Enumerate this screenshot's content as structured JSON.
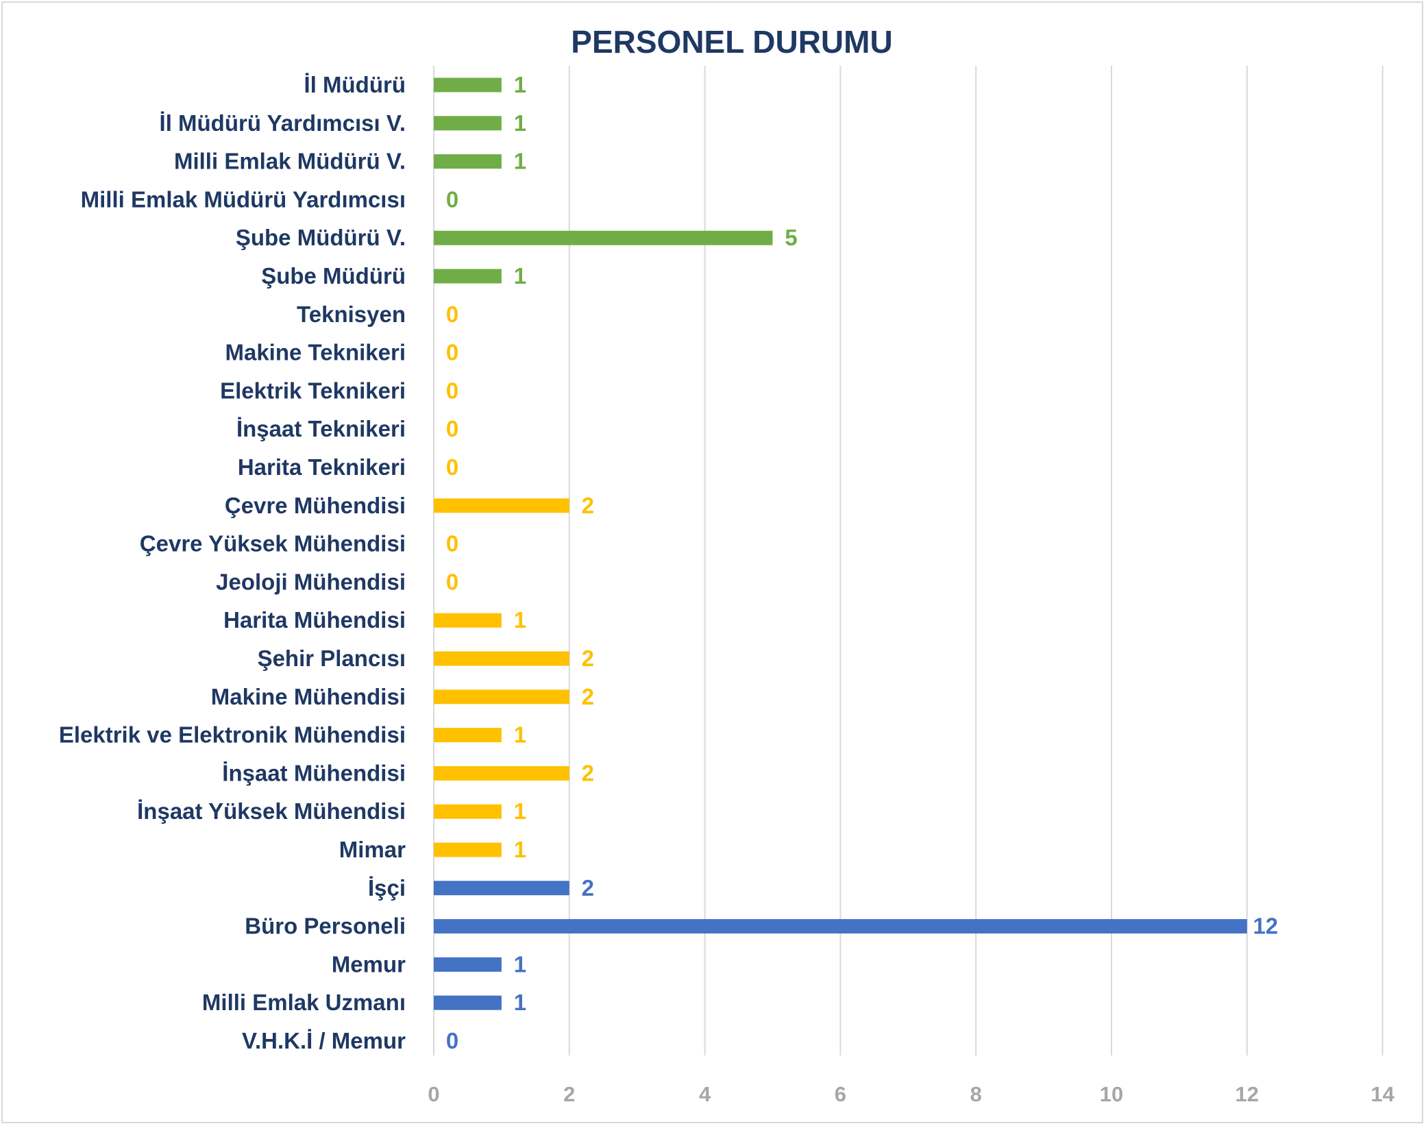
{
  "chart_data": {
    "type": "bar",
    "orientation": "horizontal",
    "title": "PERSONEL DURUMU",
    "xlabel": "",
    "ylabel": "",
    "xlim": [
      0,
      14
    ],
    "x_ticks": [
      0,
      2,
      4,
      6,
      8,
      10,
      12,
      14
    ],
    "grid": true,
    "categories": [
      "İl Müdürü",
      "İl Müdürü Yardımcısı V.",
      "Milli Emlak Müdürü V.",
      "Milli Emlak Müdürü Yardımcısı",
      "Şube Müdürü V.",
      "Şube Müdürü",
      "Teknisyen",
      "Makine Teknikeri",
      "Elektrik Teknikeri",
      "İnşaat Teknikeri",
      "Harita Teknikeri",
      "Çevre Mühendisi",
      "Çevre Yüksek Mühendisi",
      "Jeoloji Mühendisi",
      "Harita Mühendisi",
      "Şehir Plancısı",
      "Makine Mühendisi",
      "Elektrik ve Elektronik Mühendisi",
      "İnşaat Mühendisi",
      "İnşaat Yüksek Mühendisi",
      "Mimar",
      "İşçi",
      "Büro Personeli",
      "Memur",
      "Milli Emlak Uzmanı",
      "V.H.K.İ / Memur"
    ],
    "values": [
      1,
      1,
      1,
      0,
      5,
      1,
      0,
      0,
      0,
      0,
      0,
      2,
      0,
      0,
      1,
      2,
      2,
      1,
      2,
      1,
      1,
      2,
      12,
      1,
      1,
      0
    ],
    "groups": [
      "green",
      "green",
      "green",
      "green",
      "green",
      "green",
      "orange",
      "orange",
      "orange",
      "orange",
      "orange",
      "orange",
      "orange",
      "orange",
      "orange",
      "orange",
      "orange",
      "orange",
      "orange",
      "orange",
      "orange",
      "blue",
      "blue",
      "blue",
      "blue",
      "blue"
    ],
    "colors": {
      "green": "#70ad47",
      "orange": "#ffc000",
      "blue": "#4472c4"
    },
    "label_color": "#1f3864",
    "tick_color": "#a6a6a6",
    "grid_color": "#d9d9d9"
  }
}
